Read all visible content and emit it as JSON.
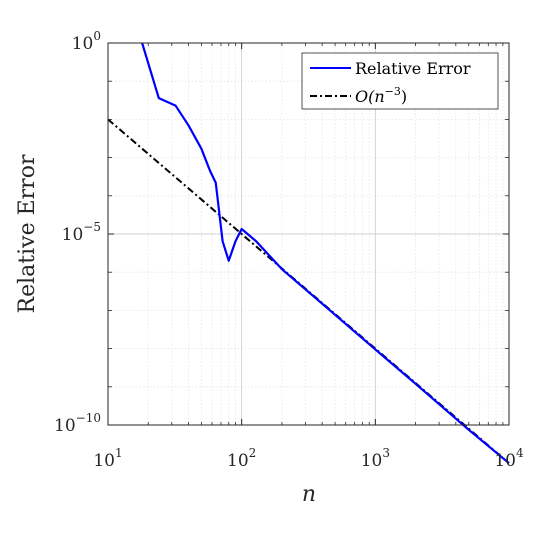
{
  "chart_data": {
    "type": "line",
    "title": "",
    "xlabel": "n",
    "ylabel": "Relative Error",
    "xscale": "log",
    "yscale": "log",
    "xlim": [
      10,
      10000
    ],
    "ylim": [
      1e-10,
      1
    ],
    "grid": "on",
    "legend_position": "top-right",
    "x_ticks": [
      {
        "base": "10",
        "exp": "1"
      },
      {
        "base": "10",
        "exp": "2"
      },
      {
        "base": "10",
        "exp": "3"
      },
      {
        "base": "10",
        "exp": "4"
      }
    ],
    "y_ticks": [
      {
        "base": "10",
        "exp": "0"
      },
      {
        "base": "10",
        "exp": "−5"
      },
      {
        "base": "10",
        "exp": "−10"
      }
    ],
    "series": [
      {
        "name": "Relative Error",
        "color": "#0000ff",
        "style": "solid",
        "x": [
          18,
          24,
          32,
          40,
          50,
          58,
          64,
          72,
          80,
          90,
          100,
          128,
          200,
          400,
          1000,
          2000,
          5000,
          10000
        ],
        "y": [
          1.0,
          0.036,
          0.023,
          0.007,
          0.0017,
          0.00045,
          0.00022,
          6.5e-06,
          2e-06,
          6.5e-06,
          1.35e-05,
          6.5e-06,
          1.2e-06,
          1.5e-07,
          9.5e-09,
          1.2e-09,
          7.5e-11,
          1e-11
        ]
      },
      {
        "name": "O(n^-3)",
        "color": "#000000",
        "style": "dashdot",
        "x": [
          10,
          10000
        ],
        "y": [
          0.01,
          1e-11
        ]
      }
    ],
    "legend": {
      "entry1": "Relative Error",
      "entry2_prefix": "O(n",
      "entry2_exp": "−3",
      "entry2_suffix": ")"
    }
  }
}
